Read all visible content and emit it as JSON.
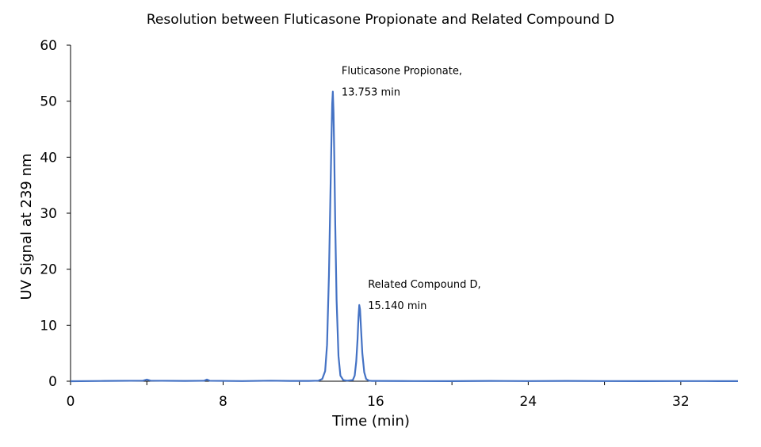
{
  "chart_data": {
    "type": "line",
    "title": "Resolution between Fluticasone Propionate and Related Compound D",
    "xlabel": "Time (min)",
    "ylabel": "UV Signal at 239 nm",
    "xlim": [
      0,
      35
    ],
    "ylim": [
      0,
      60
    ],
    "x_ticks": [
      0,
      8,
      16,
      24,
      32
    ],
    "x_minor_ticks": [
      4,
      12,
      20,
      28
    ],
    "y_ticks": [
      0,
      10,
      20,
      30,
      40,
      50,
      60
    ],
    "grid": false,
    "legend": "none",
    "color": "#4472c4",
    "series": [
      {
        "x": [
          0,
          1.8,
          3.8,
          4.0,
          4.2,
          6.0,
          7.0,
          7.15,
          7.3,
          9.0,
          10.5,
          11.5,
          12.5,
          13.0,
          13.2,
          13.35,
          13.45,
          13.55,
          13.62,
          13.68,
          13.72,
          13.753,
          13.79,
          13.83,
          13.88,
          13.95,
          14.05,
          14.15,
          14.3,
          14.5,
          14.8,
          14.9,
          14.98,
          15.05,
          15.1,
          15.14,
          15.18,
          15.23,
          15.3,
          15.4,
          15.5,
          15.65,
          15.8,
          16.0,
          18.0,
          20.0,
          22.0,
          24.0,
          26.0,
          28.0,
          30.0,
          32.0,
          34.0,
          35.0
        ],
        "y": [
          0,
          0.05,
          0.1,
          0.3,
          0.1,
          0.05,
          0.08,
          0.3,
          0.08,
          0.03,
          0.1,
          0.05,
          0.05,
          0.1,
          0.4,
          1.8,
          6.5,
          19.0,
          32.0,
          43.0,
          49.5,
          51.7,
          48.0,
          40.0,
          28.0,
          14.5,
          4.5,
          1.0,
          0.2,
          0.1,
          0.2,
          1.0,
          3.5,
          7.5,
          11.5,
          13.6,
          12.8,
          9.5,
          5.0,
          1.6,
          0.4,
          0.1,
          0.05,
          0.05,
          0.03,
          0.02,
          0.05,
          0.03,
          0.05,
          0.03,
          0.02,
          0.03,
          0.02,
          0.02
        ]
      }
    ],
    "annotations": [
      {
        "line1": "Fluticasone Propionate,",
        "line2": "13.753 min",
        "x": 13.753,
        "y": 51.7
      },
      {
        "line1": "Related Compound D,",
        "line2": "15.140 min",
        "x": 15.14,
        "y": 13.6
      }
    ]
  }
}
